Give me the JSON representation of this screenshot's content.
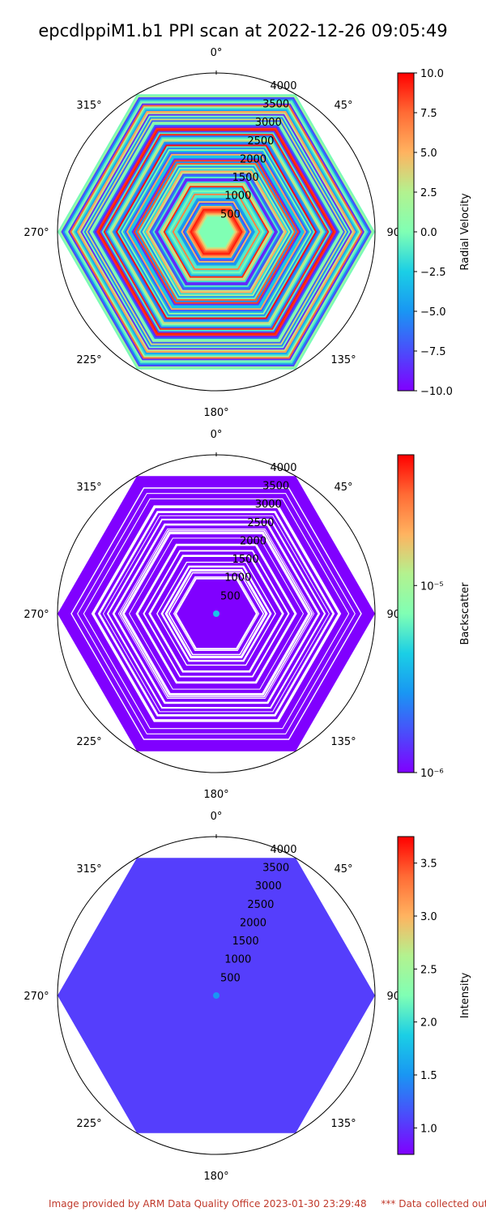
{
  "figure": {
    "title": "epcdlppiM1.b1 PPI scan at 2022-12-26 09:05:49",
    "footer": "Image provided by ARM Data Quality Office 2023-01-30 23:29:48",
    "footer_note": "*** Data collected outsid"
  },
  "chart_data": [
    {
      "type": "heatmap",
      "projection": "polar",
      "theta_zero": "N",
      "theta_direction": "clockwise",
      "angle_tick_labels": [
        "0°",
        "45°",
        "90°",
        "135°",
        "180°",
        "225°",
        "270°",
        "315°"
      ],
      "radial_tick_labels": [
        "500",
        "1000",
        "1500",
        "2000",
        "2500",
        "3000",
        "3500",
        "4000"
      ],
      "rlim": [
        0,
        4000
      ],
      "field_shape": "hexagon",
      "colorbar_label": "Radial Velocity",
      "colorbar_scale": "linear",
      "clim": [
        -10.0,
        10.0
      ],
      "colorbar_ticks": [
        "10.0",
        "7.5",
        "5.0",
        "2.5",
        "0.0",
        "−2.5",
        "−5.0",
        "−7.5",
        "−10.0"
      ],
      "colormap": "rainbow",
      "dominant_value": "mixed"
    },
    {
      "type": "heatmap",
      "projection": "polar",
      "theta_zero": "N",
      "theta_direction": "clockwise",
      "angle_tick_labels": [
        "0°",
        "45°",
        "90°",
        "135°",
        "180°",
        "225°",
        "270°",
        "315°"
      ],
      "radial_tick_labels": [
        "500",
        "1000",
        "1500",
        "2000",
        "2500",
        "3000",
        "3500",
        "4000"
      ],
      "rlim": [
        0,
        4000
      ],
      "field_shape": "hexagon",
      "colorbar_label": "Backscatter",
      "colorbar_scale": "log",
      "clim": [
        1e-06,
        5e-05
      ],
      "colorbar_ticks": [
        "10⁻⁵",
        "10⁻⁶"
      ],
      "colormap": "rainbow",
      "dominant_value": 1e-06
    },
    {
      "type": "heatmap",
      "projection": "polar",
      "theta_zero": "N",
      "theta_direction": "clockwise",
      "angle_tick_labels": [
        "0°",
        "45°",
        "90°",
        "135°",
        "180°",
        "225°",
        "270°",
        "315°"
      ],
      "radial_tick_labels": [
        "500",
        "1000",
        "1500",
        "2000",
        "2500",
        "3000",
        "3500",
        "4000"
      ],
      "rlim": [
        0,
        4000
      ],
      "field_shape": "hexagon",
      "colorbar_label": "Intensity",
      "colorbar_scale": "linear",
      "clim": [
        0.75,
        3.75
      ],
      "colorbar_ticks": [
        "3.5",
        "3.0",
        "2.5",
        "2.0",
        "1.5",
        "1.0"
      ],
      "colormap": "rainbow",
      "dominant_value": 1.0
    }
  ]
}
